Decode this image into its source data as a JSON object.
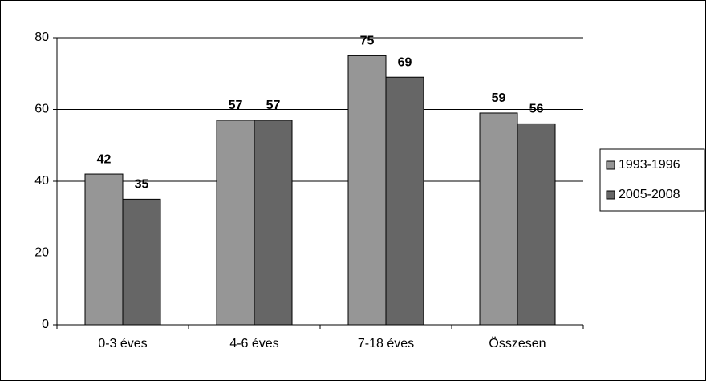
{
  "chart_data": {
    "type": "bar",
    "categories": [
      "0-3 éves",
      "4-6 éves",
      "7-18 éves",
      "Összesen"
    ],
    "series": [
      {
        "name": "1993-1996",
        "color": "#969696",
        "values": [
          42,
          57,
          75,
          59
        ]
      },
      {
        "name": "2005-2008",
        "color": "#666666",
        "values": [
          35,
          57,
          69,
          56
        ]
      }
    ],
    "ylim": [
      0,
      80
    ],
    "yticks": [
      0,
      20,
      40,
      60,
      80
    ],
    "grid": true,
    "legend": "right"
  }
}
